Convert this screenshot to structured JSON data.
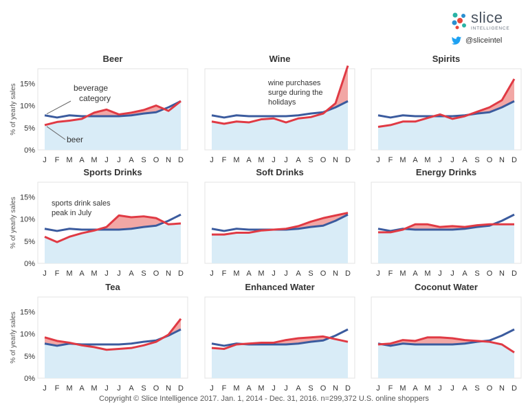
{
  "brand": {
    "name": "slice",
    "sub": "INTELLIGENCE",
    "handle": "@sliceintel",
    "colors": {
      "logo_red": "#e8453c",
      "logo_blue": "#2a8fd0",
      "logo_teal": "#29b3a6",
      "twitter": "#1da1f2"
    }
  },
  "footer": "Copyright © Slice Intelligence 2017. Jan. 1, 2014 - Dec. 31, 2016. n=299,372 U.S. online shoppers",
  "colors": {
    "category_line": "#3b5b9e",
    "beverage_line": "#e03a44",
    "above_fill": "#f2a7a5",
    "below_fill": "#d9ecf7",
    "panel_border": "#e3e3e3"
  },
  "ylabel": "% of yearly sales",
  "chart_data": [
    {
      "type": "line",
      "title": "Beer",
      "categories": [
        "J",
        "F",
        "M",
        "A",
        "M",
        "J",
        "J",
        "A",
        "S",
        "O",
        "N",
        "D"
      ],
      "yticks": [
        "0%",
        "5%",
        "10%",
        "15%"
      ],
      "ylim": [
        0,
        18
      ],
      "series": [
        {
          "name": "beverage category",
          "values": [
            7.8,
            7.3,
            7.8,
            7.6,
            7.6,
            7.6,
            7.6,
            7.8,
            8.2,
            8.5,
            9.6,
            11.0
          ]
        },
        {
          "name": "beer",
          "values": [
            5.6,
            6.3,
            6.6,
            7.0,
            8.4,
            9.1,
            8.0,
            8.4,
            9.0,
            10.0,
            8.8,
            11.0
          ]
        }
      ],
      "annotations": [
        "beverage category",
        "beer"
      ]
    },
    {
      "type": "line",
      "title": "Wine",
      "categories": [
        "J",
        "F",
        "M",
        "A",
        "M",
        "J",
        "J",
        "A",
        "S",
        "O",
        "N",
        "D"
      ],
      "yticks": [
        "0%",
        "5%",
        "10%",
        "15%"
      ],
      "ylim": [
        0,
        18
      ],
      "series": [
        {
          "values": [
            7.8,
            7.3,
            7.8,
            7.6,
            7.6,
            7.6,
            7.6,
            7.8,
            8.2,
            8.5,
            9.6,
            11.0
          ]
        },
        {
          "values": [
            6.4,
            5.9,
            6.4,
            6.2,
            6.9,
            7.1,
            6.2,
            7.1,
            7.4,
            8.2,
            10.5,
            19.0
          ]
        }
      ],
      "annotations": [
        "wine purchases surge during the holidays"
      ]
    },
    {
      "type": "line",
      "title": "Spirits",
      "categories": [
        "J",
        "F",
        "M",
        "A",
        "M",
        "J",
        "J",
        "A",
        "S",
        "O",
        "N",
        "D"
      ],
      "yticks": [
        "0%",
        "5%",
        "10%",
        "15%"
      ],
      "ylim": [
        0,
        18
      ],
      "series": [
        {
          "values": [
            7.8,
            7.3,
            7.8,
            7.6,
            7.6,
            7.6,
            7.6,
            7.8,
            8.2,
            8.5,
            9.6,
            11.0
          ]
        },
        {
          "values": [
            5.2,
            5.6,
            6.4,
            6.4,
            7.2,
            8.0,
            7.0,
            7.6,
            8.6,
            9.6,
            11.2,
            16.0
          ]
        }
      ]
    },
    {
      "type": "line",
      "title": "Sports Drinks",
      "categories": [
        "J",
        "F",
        "M",
        "A",
        "M",
        "J",
        "J",
        "A",
        "S",
        "O",
        "N",
        "D"
      ],
      "yticks": [
        "0%",
        "5%",
        "10%",
        "15%"
      ],
      "ylim": [
        0,
        18
      ],
      "series": [
        {
          "values": [
            7.8,
            7.3,
            7.8,
            7.6,
            7.6,
            7.6,
            7.6,
            7.8,
            8.2,
            8.5,
            9.6,
            11.0
          ]
        },
        {
          "values": [
            6.0,
            4.8,
            6.0,
            6.8,
            7.4,
            8.2,
            10.8,
            10.4,
            10.6,
            10.2,
            8.8,
            9.0
          ]
        }
      ],
      "annotations": [
        "sports drink sales peak in July"
      ]
    },
    {
      "type": "line",
      "title": "Soft Drinks",
      "categories": [
        "J",
        "F",
        "M",
        "A",
        "M",
        "J",
        "J",
        "A",
        "S",
        "O",
        "N",
        "D"
      ],
      "yticks": [
        "0%",
        "5%",
        "10%",
        "15%"
      ],
      "ylim": [
        0,
        18
      ],
      "series": [
        {
          "values": [
            7.8,
            7.3,
            7.8,
            7.6,
            7.6,
            7.6,
            7.6,
            7.8,
            8.2,
            8.5,
            9.6,
            11.0
          ]
        },
        {
          "values": [
            6.5,
            6.5,
            6.9,
            6.9,
            7.4,
            7.6,
            7.8,
            8.4,
            9.4,
            10.2,
            10.8,
            11.4
          ]
        }
      ]
    },
    {
      "type": "line",
      "title": "Energy Drinks",
      "categories": [
        "J",
        "F",
        "M",
        "A",
        "M",
        "J",
        "J",
        "A",
        "S",
        "O",
        "N",
        "D"
      ],
      "yticks": [
        "0%",
        "5%",
        "10%",
        "15%"
      ],
      "ylim": [
        0,
        18
      ],
      "series": [
        {
          "values": [
            7.8,
            7.3,
            7.8,
            7.6,
            7.6,
            7.6,
            7.6,
            7.8,
            8.2,
            8.5,
            9.6,
            11.0
          ]
        },
        {
          "values": [
            7.0,
            7.0,
            7.6,
            8.8,
            8.8,
            8.2,
            8.4,
            8.2,
            8.6,
            8.8,
            8.8,
            8.8
          ]
        }
      ]
    },
    {
      "type": "line",
      "title": "Tea",
      "categories": [
        "J",
        "F",
        "M",
        "A",
        "M",
        "J",
        "J",
        "A",
        "S",
        "O",
        "N",
        "D"
      ],
      "yticks": [
        "0%",
        "5%",
        "10%",
        "15%"
      ],
      "ylim": [
        0,
        18
      ],
      "series": [
        {
          "values": [
            7.8,
            7.3,
            7.8,
            7.6,
            7.6,
            7.6,
            7.6,
            7.8,
            8.2,
            8.5,
            9.6,
            11.0
          ]
        },
        {
          "values": [
            9.2,
            8.4,
            8.0,
            7.4,
            7.0,
            6.4,
            6.6,
            6.8,
            7.4,
            8.2,
            9.8,
            13.4
          ]
        }
      ]
    },
    {
      "type": "line",
      "title": "Enhanced Water",
      "categories": [
        "J",
        "F",
        "M",
        "A",
        "M",
        "J",
        "J",
        "A",
        "S",
        "O",
        "N",
        "D"
      ],
      "yticks": [
        "0%",
        "5%",
        "10%",
        "15%"
      ],
      "ylim": [
        0,
        18
      ],
      "series": [
        {
          "values": [
            7.8,
            7.3,
            7.8,
            7.6,
            7.6,
            7.6,
            7.6,
            7.8,
            8.2,
            8.5,
            9.6,
            11.0
          ]
        },
        {
          "values": [
            6.8,
            6.6,
            7.6,
            7.8,
            8.0,
            8.0,
            8.6,
            9.0,
            9.2,
            9.4,
            8.8,
            8.2
          ]
        }
      ]
    },
    {
      "type": "line",
      "title": "Coconut Water",
      "categories": [
        "J",
        "F",
        "M",
        "A",
        "M",
        "J",
        "J",
        "A",
        "S",
        "O",
        "N",
        "D"
      ],
      "yticks": [
        "0%",
        "5%",
        "10%",
        "15%"
      ],
      "ylim": [
        0,
        18
      ],
      "series": [
        {
          "values": [
            7.8,
            7.3,
            7.8,
            7.6,
            7.6,
            7.6,
            7.6,
            7.8,
            8.2,
            8.5,
            9.6,
            11.0
          ]
        },
        {
          "values": [
            7.6,
            7.8,
            8.6,
            8.4,
            9.2,
            9.2,
            9.0,
            8.6,
            8.4,
            8.2,
            7.6,
            5.8
          ]
        }
      ]
    }
  ]
}
